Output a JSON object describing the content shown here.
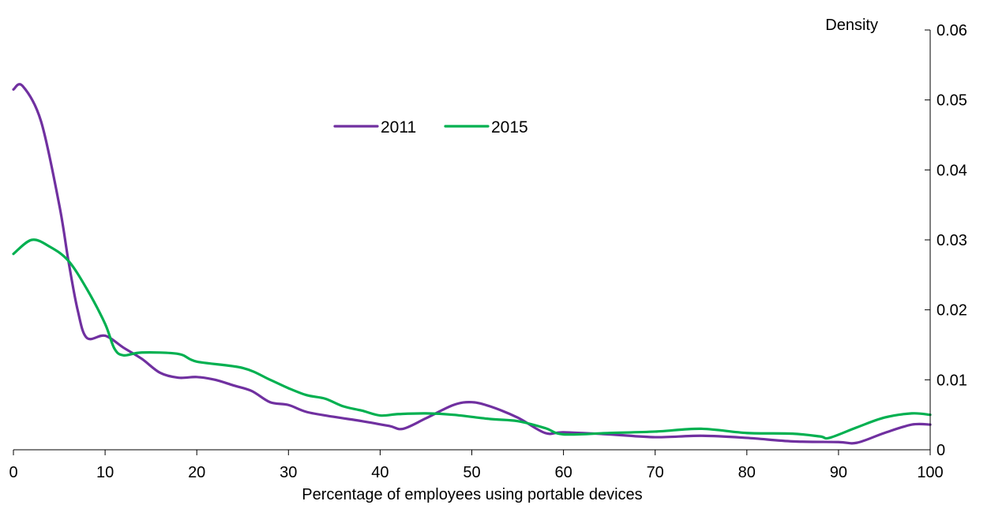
{
  "chart_data": {
    "type": "line",
    "title": "",
    "xlabel": "Percentage of employees using portable devices",
    "ylabel": "Density",
    "xlim": [
      0,
      100
    ],
    "ylim": [
      0,
      0.06
    ],
    "x_ticks": [
      0,
      10,
      20,
      30,
      40,
      50,
      60,
      70,
      80,
      90,
      100
    ],
    "x_tick_labels": [
      "0",
      "10",
      "20",
      "30",
      "40",
      "50",
      "60",
      "70",
      "80",
      "90",
      "100"
    ],
    "y_ticks": [
      0,
      0.01,
      0.02,
      0.03,
      0.04,
      0.05,
      0.06
    ],
    "y_tick_labels": [
      "0",
      "0.01",
      "0.02",
      "0.03",
      "0.04",
      "0.05",
      "0.06"
    ],
    "y_axis_side": "right",
    "grid": false,
    "legend_position": "top-center",
    "series": [
      {
        "name": "2011",
        "color": "#7030a0",
        "points": [
          [
            0,
            0.0515
          ],
          [
            1,
            0.052
          ],
          [
            3,
            0.047
          ],
          [
            5,
            0.035
          ],
          [
            6,
            0.027
          ],
          [
            7,
            0.02
          ],
          [
            8,
            0.016
          ],
          [
            10,
            0.0163
          ],
          [
            12,
            0.0146
          ],
          [
            14,
            0.013
          ],
          [
            16,
            0.011
          ],
          [
            18,
            0.0103
          ],
          [
            20,
            0.0104
          ],
          [
            22,
            0.01
          ],
          [
            24,
            0.0092
          ],
          [
            26,
            0.0084
          ],
          [
            28,
            0.0068
          ],
          [
            30,
            0.0064
          ],
          [
            32,
            0.0054
          ],
          [
            35,
            0.0047
          ],
          [
            38,
            0.0041
          ],
          [
            41,
            0.0034
          ],
          [
            42.5,
            0.003
          ],
          [
            45,
            0.0045
          ],
          [
            48,
            0.0064
          ],
          [
            50,
            0.0068
          ],
          [
            52,
            0.0062
          ],
          [
            55,
            0.0046
          ],
          [
            58,
            0.0024
          ],
          [
            60,
            0.0025
          ],
          [
            65,
            0.0022
          ],
          [
            70,
            0.0018
          ],
          [
            75,
            0.002
          ],
          [
            80,
            0.0017
          ],
          [
            85,
            0.0012
          ],
          [
            90,
            0.0011
          ],
          [
            92,
            0.001
          ],
          [
            95,
            0.0024
          ],
          [
            98,
            0.0036
          ],
          [
            100,
            0.0036
          ]
        ]
      },
      {
        "name": "2015",
        "color": "#00b050",
        "points": [
          [
            0,
            0.028
          ],
          [
            2,
            0.03
          ],
          [
            4,
            0.029
          ],
          [
            6,
            0.027
          ],
          [
            8,
            0.023
          ],
          [
            10,
            0.018
          ],
          [
            11,
            0.0145
          ],
          [
            12,
            0.0135
          ],
          [
            14,
            0.0139
          ],
          [
            18,
            0.0137
          ],
          [
            20,
            0.0126
          ],
          [
            25,
            0.0117
          ],
          [
            28,
            0.01
          ],
          [
            30,
            0.0088
          ],
          [
            32,
            0.0078
          ],
          [
            34,
            0.0073
          ],
          [
            36,
            0.0062
          ],
          [
            38,
            0.0056
          ],
          [
            40,
            0.0049
          ],
          [
            42,
            0.0051
          ],
          [
            45,
            0.0052
          ],
          [
            48,
            0.005
          ],
          [
            52,
            0.0044
          ],
          [
            55,
            0.0041
          ],
          [
            58,
            0.0031
          ],
          [
            60,
            0.0022
          ],
          [
            65,
            0.0024
          ],
          [
            70,
            0.0026
          ],
          [
            75,
            0.003
          ],
          [
            80,
            0.0024
          ],
          [
            85,
            0.0023
          ],
          [
            88,
            0.0019
          ],
          [
            89,
            0.0017
          ],
          [
            92,
            0.0032
          ],
          [
            95,
            0.0046
          ],
          [
            98,
            0.0052
          ],
          [
            100,
            0.005
          ]
        ]
      }
    ]
  }
}
